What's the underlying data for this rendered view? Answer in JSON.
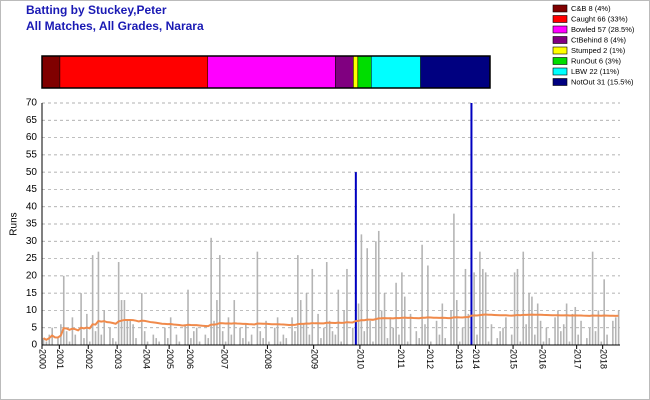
{
  "chart_data": {
    "type": "bar",
    "title": "Batting by Stuckey,Peter",
    "subtitle": "All Matches, All Grades, Narara",
    "y_label": "Runs",
    "color": "#b4b4b4",
    "average_color": "#f08a4b",
    "highlight": [
      108,
      148
    ],
    "highlight_color": "#0000c0",
    "grid": true,
    "ylim": [
      0,
      70
    ],
    "yticks": [
      0,
      5,
      10,
      15,
      20,
      25,
      30,
      35,
      40,
      45,
      50,
      55,
      60,
      65,
      70
    ],
    "xlim": [
      0,
      200
    ],
    "xticks": [
      {
        "value": 0,
        "label": "2000"
      },
      {
        "value": 6,
        "label": "2001"
      },
      {
        "value": 16,
        "label": "2002"
      },
      {
        "value": 26,
        "label": "2003"
      },
      {
        "value": 36,
        "label": "2004"
      },
      {
        "value": 44,
        "label": "2005"
      },
      {
        "value": 51,
        "label": "2006"
      },
      {
        "value": 63,
        "label": "2007"
      },
      {
        "value": 78,
        "label": "2008"
      },
      {
        "value": 94,
        "label": "2009"
      },
      {
        "value": 110,
        "label": "2010"
      },
      {
        "value": 124,
        "label": "2011"
      },
      {
        "value": 134,
        "label": "2012"
      },
      {
        "value": 144,
        "label": "2013"
      },
      {
        "value": 150,
        "label": "2014"
      },
      {
        "value": 163,
        "label": "2015"
      },
      {
        "value": 173,
        "label": "2016"
      },
      {
        "value": 185,
        "label": "2017"
      },
      {
        "value": 194,
        "label": "2018"
      }
    ],
    "values": [
      2,
      1,
      3,
      5,
      0,
      2,
      6,
      20,
      4,
      1,
      8,
      3,
      0,
      15,
      2,
      9,
      1,
      26,
      4,
      27,
      3,
      10,
      0,
      5,
      2,
      1,
      24,
      13,
      13,
      7,
      7,
      6,
      2,
      0,
      15,
      4,
      1,
      0,
      3,
      2,
      1,
      0,
      5,
      2,
      8,
      0,
      3,
      1,
      0,
      6,
      16,
      2,
      4,
      5,
      1,
      0,
      3,
      2,
      31,
      7,
      13,
      26,
      4,
      1,
      8,
      3,
      13,
      0,
      5,
      2,
      6,
      1,
      3,
      0,
      27,
      4,
      2,
      7,
      1,
      0,
      5,
      8,
      1,
      3,
      2,
      0,
      8,
      4,
      26,
      13,
      6,
      15,
      3,
      22,
      0,
      9,
      2,
      5,
      24,
      7,
      4,
      3,
      16,
      1,
      10,
      22,
      0,
      5,
      50,
      12,
      32,
      4,
      28,
      7,
      1,
      30,
      33,
      10,
      15,
      2,
      8,
      5,
      18,
      3,
      21,
      14,
      1,
      9,
      0,
      4,
      2,
      29,
      6,
      23,
      1,
      0,
      7,
      3,
      12,
      2,
      0,
      10,
      38,
      13,
      1,
      5,
      22,
      9,
      70,
      21,
      3,
      27,
      22,
      21,
      1,
      6,
      0,
      2,
      4,
      5,
      8,
      0,
      3,
      21,
      22,
      1,
      27,
      6,
      15,
      14,
      3,
      12,
      7,
      1,
      5,
      2,
      0,
      8,
      10,
      4,
      6,
      12,
      1,
      9,
      11,
      3,
      7,
      0,
      2,
      5,
      27,
      4,
      10,
      1,
      19,
      3,
      0,
      7,
      8,
      10
    ],
    "dismissals": {
      "labels": [
        "C&B 8 (4%)",
        "Caught 66 (33%)",
        "Bowled 57 (28.5%)",
        "CtBehind 8 (4%)",
        "Stumped 2 (1%)",
        "RunOut 6 (3%)",
        "LBW 22 (11%)",
        "NotOut 31 (15.5%)"
      ],
      "values": [
        8,
        66,
        57,
        8,
        2,
        6,
        22,
        31
      ],
      "colors": [
        "#800000",
        "#ff0000",
        "#ff00ff",
        "#800080",
        "#ffff00",
        "#00dd00",
        "#00ffff",
        "#000080"
      ]
    }
  }
}
